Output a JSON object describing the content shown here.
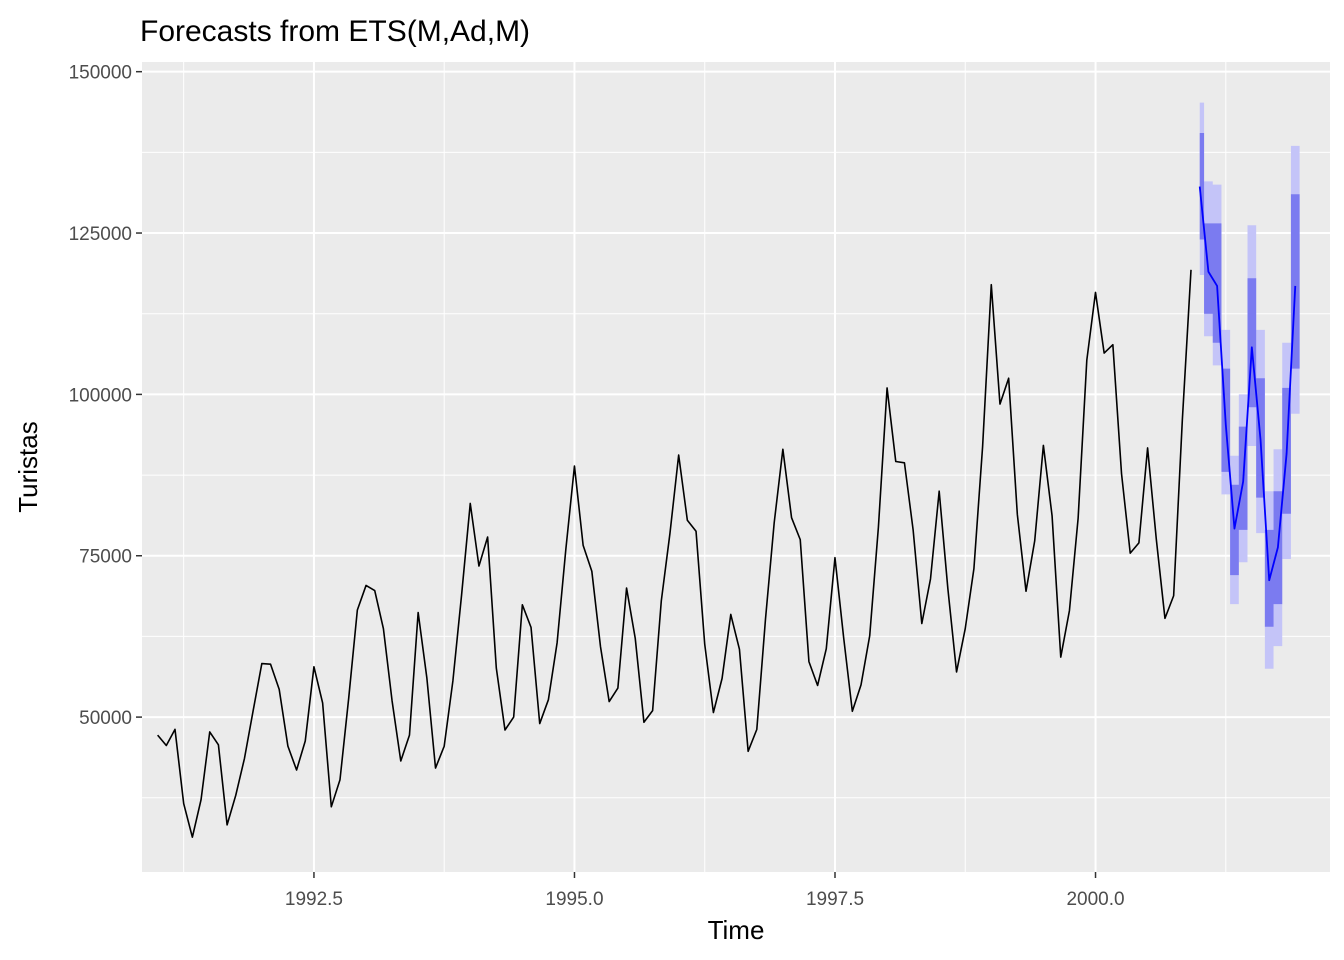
{
  "chart_data": {
    "type": "line",
    "title": "Forecasts from ETS(M,Ad,M)",
    "xlabel": "Time",
    "ylabel": "Turistas",
    "xlim": [
      1990.85,
      2002.25
    ],
    "ylim": [
      26000,
      151500
    ],
    "x_ticks": [
      1992.5,
      1995.0,
      1997.5,
      2000.0
    ],
    "x_tick_labels": [
      "1992.5",
      "1995.0",
      "1997.5",
      "2000.0"
    ],
    "y_ticks": [
      50000,
      75000,
      100000,
      125000,
      150000
    ],
    "y_tick_labels": [
      "50000",
      "75000",
      "100000",
      "125000",
      "150000"
    ],
    "grid": true,
    "colors": {
      "panel": "#ebebeb",
      "grid": "#ffffff",
      "history": "#000000",
      "forecast": "#0000ff",
      "band80": "#7b7bf0",
      "band95": "#c4c4f8"
    },
    "history": {
      "start": 1991.0,
      "step": 0.08333,
      "values": [
        47200,
        45600,
        48100,
        36600,
        31400,
        37200,
        47700,
        45700,
        33300,
        37900,
        43600,
        51000,
        58300,
        58200,
        54300,
        45500,
        41800,
        46300,
        57800,
        52200,
        36100,
        40300,
        52900,
        66600,
        70400,
        69600,
        63700,
        52500,
        43200,
        47200,
        66200,
        56100,
        42100,
        45500,
        55600,
        68900,
        83100,
        73400,
        77900,
        57600,
        48000,
        50000,
        67400,
        63900,
        49000,
        52700,
        61500,
        75900,
        88900,
        76600,
        72600,
        60900,
        52400,
        54500,
        70000,
        62200,
        49200,
        51000,
        68000,
        78500,
        90600,
        80500,
        78800,
        61300,
        50700,
        56000,
        65900,
        60500,
        44700,
        48100,
        65200,
        80100,
        91500,
        80900,
        77500,
        58600,
        54900,
        60600,
        74700,
        62300,
        50900,
        55000,
        62600,
        79400,
        101000,
        89600,
        89400,
        79000,
        64500,
        71400,
        85000,
        69900,
        57000,
        63700,
        73000,
        91900,
        117000,
        98500,
        102500,
        81400,
        69500,
        77300,
        92100,
        81200,
        59300,
        66500,
        80800,
        105300,
        115800,
        106400,
        107700,
        87700,
        75400,
        77000,
        91700,
        77600,
        65300,
        68800,
        96000,
        119300
      ]
    },
    "forecast": {
      "x": [
        2001.0,
        2001.0833,
        2001.1667,
        2001.25,
        2001.3333,
        2001.4167,
        2001.5,
        2001.5833,
        2001.6667,
        2001.75,
        2001.8333,
        2001.9167
      ],
      "mean": [
        132200,
        119000,
        116800,
        95300,
        79200,
        86500,
        107300,
        93000,
        71200,
        76300,
        90800,
        116800
      ],
      "lo80": [
        124000,
        112500,
        108000,
        88000,
        72000,
        79000,
        98000,
        84000,
        64000,
        67500,
        81500,
        104000
      ],
      "hi80": [
        140500,
        126500,
        126500,
        104000,
        86000,
        95000,
        118000,
        102500,
        79000,
        85000,
        101000,
        131000
      ],
      "lo95": [
        118500,
        109000,
        104500,
        84500,
        67500,
        74000,
        92000,
        78500,
        57500,
        61000,
        74500,
        97000
      ],
      "hi95": [
        145200,
        133000,
        132500,
        110000,
        90500,
        100000,
        126200,
        110000,
        85000,
        91500,
        108000,
        138500
      ]
    }
  }
}
